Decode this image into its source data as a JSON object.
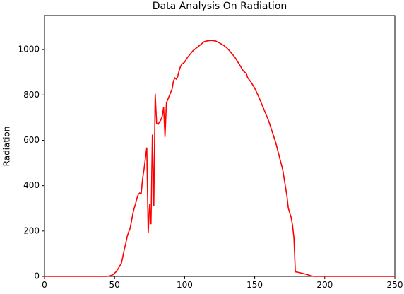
{
  "chart_data": {
    "type": "line",
    "title": "Data Analysis On Radiation",
    "y_label": "Radiation",
    "x": [
      0,
      45,
      47,
      49,
      51,
      53,
      55,
      56,
      57,
      58,
      59,
      60,
      61,
      62,
      63,
      64,
      65,
      66,
      67,
      68,
      69,
      70,
      71,
      72,
      73,
      74,
      75,
      76,
      77,
      78,
      79,
      80,
      81,
      82,
      83,
      84,
      85,
      86,
      87,
      88,
      89,
      90,
      91,
      92,
      93,
      94,
      95,
      96,
      97,
      98,
      100,
      102,
      104,
      106,
      108,
      110,
      112,
      114,
      116,
      118,
      120,
      122,
      124,
      126,
      128,
      130,
      132,
      134,
      136,
      138,
      140,
      142,
      144,
      145,
      147,
      150,
      153,
      156,
      160,
      165,
      170,
      173,
      174,
      176,
      177,
      178,
      179,
      181,
      185,
      190,
      192,
      250
    ],
    "series": [
      {
        "name": "Radiation",
        "color": "#ff0000",
        "values": [
          0,
          0,
          3,
          8,
          20,
          38,
          60,
          90,
          120,
          145,
          175,
          195,
          210,
          240,
          275,
          300,
          320,
          345,
          362,
          368,
          365,
          430,
          470,
          520,
          568,
          190,
          320,
          230,
          625,
          310,
          805,
          675,
          670,
          680,
          690,
          705,
          745,
          615,
          765,
          780,
          795,
          810,
          825,
          860,
          875,
          870,
          880,
          905,
          925,
          935,
          945,
          965,
          980,
          995,
          1005,
          1015,
          1025,
          1035,
          1038,
          1040,
          1040,
          1038,
          1032,
          1025,
          1018,
          1008,
          995,
          980,
          965,
          945,
          925,
          905,
          895,
          875,
          860,
          830,
          790,
          745,
          685,
          590,
          470,
          355,
          300,
          260,
          225,
          170,
          20,
          18,
          12,
          3,
          0,
          0
        ]
      }
    ],
    "xlim": [
      0,
      250
    ],
    "ylim": [
      0,
      1150
    ],
    "xticks": [
      0,
      50,
      100,
      150,
      200,
      250
    ],
    "yticks": [
      0,
      200,
      400,
      600,
      800,
      1000
    ]
  }
}
